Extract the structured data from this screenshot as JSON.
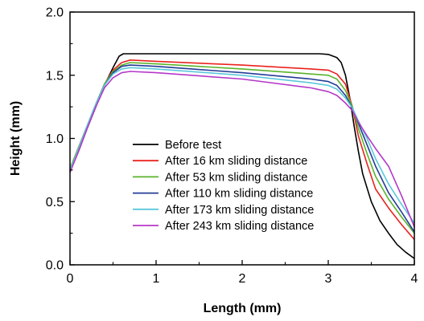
{
  "chart_data": {
    "type": "line",
    "xlabel": "Length (mm)",
    "ylabel": "Height (mm)",
    "xlim": [
      0,
      4
    ],
    "ylim": [
      0.0,
      2.0
    ],
    "x_ticks": [
      "0",
      "1",
      "2",
      "3",
      "4"
    ],
    "y_ticks": [
      "0.0",
      "0.5",
      "1.0",
      "1.5",
      "2.0"
    ],
    "grid": false,
    "legend_position": "lower-left",
    "series": [
      {
        "name": "Before test",
        "color": "#000000",
        "points": [
          [
            0,
            0.74
          ],
          [
            0.1,
            0.9
          ],
          [
            0.2,
            1.08
          ],
          [
            0.3,
            1.25
          ],
          [
            0.4,
            1.42
          ],
          [
            0.5,
            1.56
          ],
          [
            0.57,
            1.65
          ],
          [
            0.62,
            1.67
          ],
          [
            1.0,
            1.67
          ],
          [
            2.0,
            1.67
          ],
          [
            2.9,
            1.67
          ],
          [
            3.0,
            1.665
          ],
          [
            3.1,
            1.64
          ],
          [
            3.15,
            1.6
          ],
          [
            3.2,
            1.5
          ],
          [
            3.25,
            1.32
          ],
          [
            3.3,
            1.1
          ],
          [
            3.35,
            0.9
          ],
          [
            3.4,
            0.72
          ],
          [
            3.5,
            0.5
          ],
          [
            3.6,
            0.35
          ],
          [
            3.7,
            0.25
          ],
          [
            3.8,
            0.16
          ],
          [
            3.9,
            0.1
          ],
          [
            4.0,
            0.05
          ]
        ]
      },
      {
        "name": "After 16 km sliding distance",
        "color": "#e8231e",
        "points": [
          [
            0,
            0.76
          ],
          [
            0.1,
            0.93
          ],
          [
            0.2,
            1.1
          ],
          [
            0.3,
            1.27
          ],
          [
            0.4,
            1.43
          ],
          [
            0.5,
            1.54
          ],
          [
            0.6,
            1.6
          ],
          [
            0.7,
            1.62
          ],
          [
            1.0,
            1.61
          ],
          [
            2.0,
            1.58
          ],
          [
            2.8,
            1.55
          ],
          [
            3.0,
            1.54
          ],
          [
            3.1,
            1.51
          ],
          [
            3.2,
            1.43
          ],
          [
            3.28,
            1.25
          ],
          [
            3.35,
            1.02
          ],
          [
            3.45,
            0.8
          ],
          [
            3.55,
            0.6
          ],
          [
            3.7,
            0.45
          ],
          [
            3.85,
            0.32
          ],
          [
            4.0,
            0.2
          ]
        ]
      },
      {
        "name": "After 53 km sliding distance",
        "color": "#5ab42b",
        "points": [
          [
            0,
            0.76
          ],
          [
            0.1,
            0.93
          ],
          [
            0.2,
            1.1
          ],
          [
            0.3,
            1.27
          ],
          [
            0.4,
            1.43
          ],
          [
            0.5,
            1.53
          ],
          [
            0.6,
            1.58
          ],
          [
            0.7,
            1.6
          ],
          [
            1.0,
            1.59
          ],
          [
            2.0,
            1.55
          ],
          [
            2.8,
            1.51
          ],
          [
            3.0,
            1.5
          ],
          [
            3.1,
            1.47
          ],
          [
            3.2,
            1.38
          ],
          [
            3.28,
            1.25
          ],
          [
            3.35,
            1.08
          ],
          [
            3.45,
            0.88
          ],
          [
            3.55,
            0.7
          ],
          [
            3.7,
            0.52
          ],
          [
            3.85,
            0.38
          ],
          [
            4.0,
            0.25
          ]
        ]
      },
      {
        "name": "After 110 km sliding distance",
        "color": "#233c96",
        "points": [
          [
            0,
            0.74
          ],
          [
            0.1,
            0.92
          ],
          [
            0.2,
            1.1
          ],
          [
            0.3,
            1.27
          ],
          [
            0.4,
            1.42
          ],
          [
            0.5,
            1.52
          ],
          [
            0.6,
            1.57
          ],
          [
            0.7,
            1.58
          ],
          [
            1.0,
            1.57
          ],
          [
            2.0,
            1.52
          ],
          [
            2.8,
            1.47
          ],
          [
            3.0,
            1.45
          ],
          [
            3.1,
            1.42
          ],
          [
            3.2,
            1.34
          ],
          [
            3.28,
            1.24
          ],
          [
            3.35,
            1.12
          ],
          [
            3.45,
            0.95
          ],
          [
            3.55,
            0.78
          ],
          [
            3.7,
            0.57
          ],
          [
            3.85,
            0.42
          ],
          [
            4.0,
            0.26
          ]
        ]
      },
      {
        "name": "After 173 km sliding distance",
        "color": "#5ac8dc",
        "points": [
          [
            0,
            0.75
          ],
          [
            0.1,
            0.92
          ],
          [
            0.2,
            1.1
          ],
          [
            0.3,
            1.27
          ],
          [
            0.4,
            1.42
          ],
          [
            0.5,
            1.51
          ],
          [
            0.6,
            1.55
          ],
          [
            0.7,
            1.56
          ],
          [
            1.0,
            1.55
          ],
          [
            2.0,
            1.5
          ],
          [
            2.8,
            1.44
          ],
          [
            3.0,
            1.42
          ],
          [
            3.1,
            1.39
          ],
          [
            3.2,
            1.32
          ],
          [
            3.28,
            1.24
          ],
          [
            3.35,
            1.14
          ],
          [
            3.45,
            1.0
          ],
          [
            3.55,
            0.84
          ],
          [
            3.7,
            0.64
          ],
          [
            3.85,
            0.48
          ],
          [
            4.0,
            0.33
          ]
        ]
      },
      {
        "name": "After 243 km sliding distance",
        "color": "#b438c8",
        "points": [
          [
            0,
            0.73
          ],
          [
            0.1,
            0.9
          ],
          [
            0.2,
            1.08
          ],
          [
            0.3,
            1.25
          ],
          [
            0.4,
            1.4
          ],
          [
            0.5,
            1.48
          ],
          [
            0.6,
            1.52
          ],
          [
            0.7,
            1.53
          ],
          [
            1.0,
            1.52
          ],
          [
            2.0,
            1.47
          ],
          [
            2.8,
            1.4
          ],
          [
            3.0,
            1.37
          ],
          [
            3.1,
            1.34
          ],
          [
            3.2,
            1.28
          ],
          [
            3.28,
            1.22
          ],
          [
            3.35,
            1.13
          ],
          [
            3.45,
            1.02
          ],
          [
            3.55,
            0.92
          ],
          [
            3.7,
            0.78
          ],
          [
            3.85,
            0.55
          ],
          [
            4.0,
            0.3
          ]
        ]
      }
    ]
  }
}
